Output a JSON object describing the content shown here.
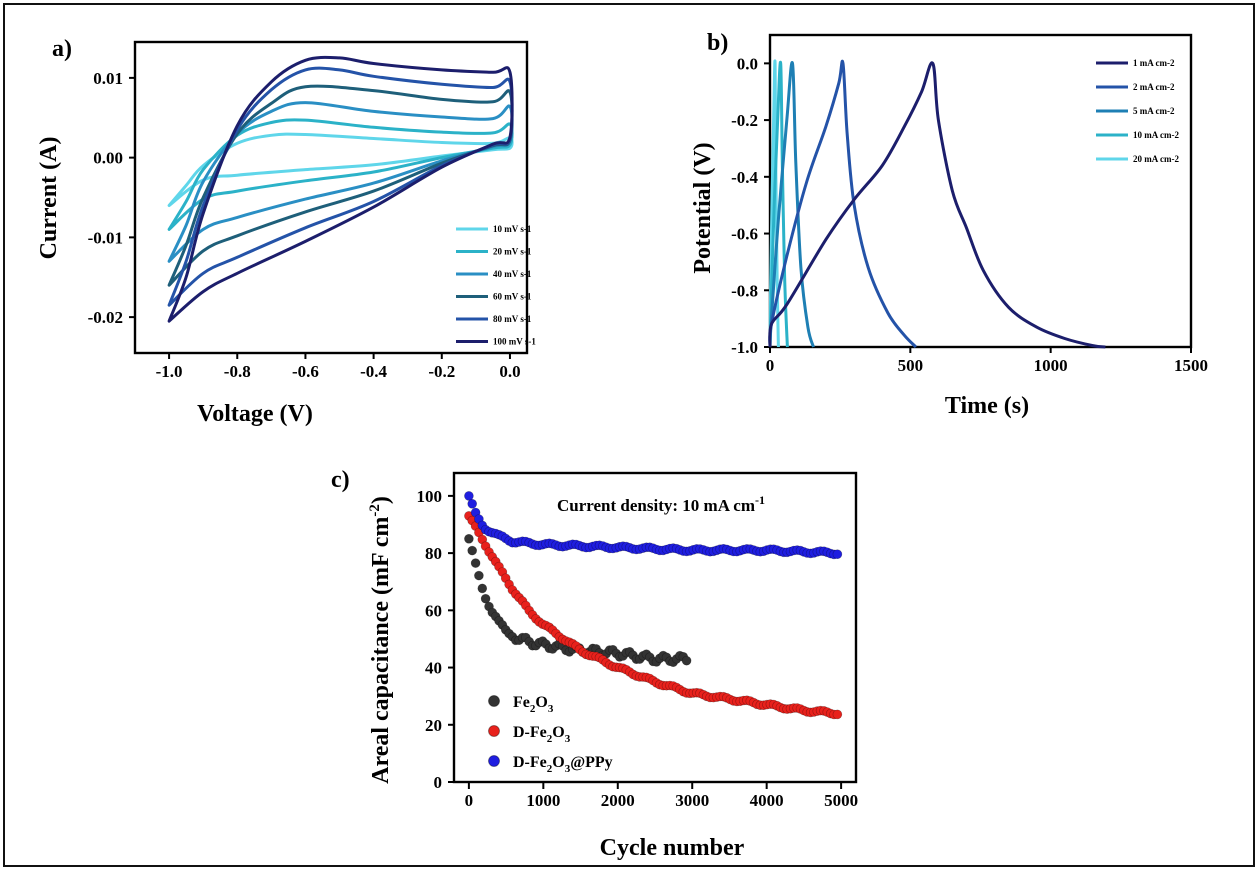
{
  "chart_data": [
    {
      "panel": "a)",
      "type": "line",
      "xlabel": "Voltage (V)",
      "ylabel": "Current (A)",
      "xlim": [
        -1.1,
        0.05
      ],
      "ylim": [
        -0.0245,
        0.0145
      ],
      "x_ticks": [
        -1.0,
        -0.8,
        -0.6,
        -0.4,
        -0.2,
        0.0
      ],
      "x_tick_labels": [
        "-1.0",
        "-0.8",
        "-0.6",
        "-0.4",
        "-0.2",
        "0.0"
      ],
      "y_ticks": [
        0.01,
        0.0,
        -0.01,
        -0.02
      ],
      "y_tick_labels": [
        "0.01",
        "0.00",
        "-0.01",
        "-0.02"
      ],
      "legend_position": "bottom-right",
      "series": [
        {
          "name": "10 mV s-1",
          "color": "#5fd6ea",
          "top": [
            [
              -1.0,
              -0.006
            ],
            [
              -0.95,
              -0.0035
            ],
            [
              -0.9,
              -0.001
            ],
            [
              -0.8,
              0.0018
            ],
            [
              -0.7,
              0.0028
            ],
            [
              -0.6,
              0.0029
            ],
            [
              -0.4,
              0.0024
            ],
            [
              -0.2,
              0.0019
            ],
            [
              -0.05,
              0.0018
            ],
            [
              0.0,
              0.0025
            ]
          ],
          "bottom": [
            [
              0.0,
              0.0012
            ],
            [
              -0.05,
              0.001
            ],
            [
              -0.2,
              0.0002
            ],
            [
              -0.4,
              -0.0009
            ],
            [
              -0.6,
              -0.0015
            ],
            [
              -0.8,
              -0.0022
            ],
            [
              -0.9,
              -0.0028
            ],
            [
              -1.0,
              -0.006
            ]
          ]
        },
        {
          "name": "20 mV s-1",
          "color": "#2bb2c8",
          "top": [
            [
              -1.0,
              -0.009
            ],
            [
              -0.95,
              -0.0055
            ],
            [
              -0.9,
              -0.0015
            ],
            [
              -0.8,
              0.0028
            ],
            [
              -0.7,
              0.0044
            ],
            [
              -0.6,
              0.0047
            ],
            [
              -0.4,
              0.0038
            ],
            [
              -0.2,
              0.0032
            ],
            [
              -0.05,
              0.0031
            ],
            [
              0.0,
              0.0042
            ]
          ],
          "bottom": [
            [
              0.0,
              0.0016
            ],
            [
              -0.05,
              0.0012
            ],
            [
              -0.2,
              0.0
            ],
            [
              -0.4,
              -0.0018
            ],
            [
              -0.6,
              -0.0029
            ],
            [
              -0.8,
              -0.0042
            ],
            [
              -0.9,
              -0.0052
            ],
            [
              -1.0,
              -0.009
            ]
          ]
        },
        {
          "name": "40 mV s-1",
          "color": "#2a8fc4",
          "top": [
            [
              -1.0,
              -0.013
            ],
            [
              -0.95,
              -0.0085
            ],
            [
              -0.9,
              -0.003
            ],
            [
              -0.8,
              0.003
            ],
            [
              -0.7,
              0.0058
            ],
            [
              -0.6,
              0.0069
            ],
            [
              -0.4,
              0.0058
            ],
            [
              -0.2,
              0.0051
            ],
            [
              -0.05,
              0.0049
            ],
            [
              0.0,
              0.0064
            ]
          ],
          "bottom": [
            [
              0.0,
              0.002
            ],
            [
              -0.05,
              0.0014
            ],
            [
              -0.2,
              -0.0004
            ],
            [
              -0.4,
              -0.0032
            ],
            [
              -0.6,
              -0.0052
            ],
            [
              -0.8,
              -0.0075
            ],
            [
              -0.9,
              -0.009
            ],
            [
              -1.0,
              -0.013
            ]
          ]
        },
        {
          "name": "60 mV s-1",
          "color": "#1e5f7a",
          "top": [
            [
              -1.0,
              -0.016
            ],
            [
              -0.95,
              -0.011
            ],
            [
              -0.9,
              -0.005
            ],
            [
              -0.8,
              0.003
            ],
            [
              -0.7,
              0.0068
            ],
            [
              -0.6,
              0.0089
            ],
            [
              -0.4,
              0.0084
            ],
            [
              -0.2,
              0.0073
            ],
            [
              -0.05,
              0.007
            ],
            [
              0.0,
              0.0082
            ]
          ],
          "bottom": [
            [
              0.0,
              0.0022
            ],
            [
              -0.05,
              0.0015
            ],
            [
              -0.2,
              -0.0007
            ],
            [
              -0.4,
              -0.0042
            ],
            [
              -0.6,
              -0.0068
            ],
            [
              -0.8,
              -0.0098
            ],
            [
              -0.9,
              -0.0117
            ],
            [
              -1.0,
              -0.016
            ]
          ]
        },
        {
          "name": "80 mV s-1",
          "color": "#2453a8",
          "top": [
            [
              -1.0,
              -0.0185
            ],
            [
              -0.95,
              -0.013
            ],
            [
              -0.9,
              -0.006
            ],
            [
              -0.8,
              0.0035
            ],
            [
              -0.7,
              0.0085
            ],
            [
              -0.6,
              0.011
            ],
            [
              -0.5,
              0.011
            ],
            [
              -0.4,
              0.0102
            ],
            [
              -0.2,
              0.0092
            ],
            [
              -0.05,
              0.0088
            ],
            [
              0.0,
              0.0095
            ]
          ],
          "bottom": [
            [
              0.0,
              0.0024
            ],
            [
              -0.05,
              0.0016
            ],
            [
              -0.2,
              -0.001
            ],
            [
              -0.4,
              -0.0055
            ],
            [
              -0.6,
              -0.0088
            ],
            [
              -0.8,
              -0.0125
            ],
            [
              -0.9,
              -0.0145
            ],
            [
              -1.0,
              -0.0185
            ]
          ]
        },
        {
          "name": "100 mV s-1",
          "color": "#1c1e6c",
          "top": [
            [
              -1.0,
              -0.0205
            ],
            [
              -0.95,
              -0.015
            ],
            [
              -0.9,
              -0.007
            ],
            [
              -0.8,
              0.004
            ],
            [
              -0.7,
              0.0095
            ],
            [
              -0.6,
              0.0122
            ],
            [
              -0.5,
              0.0125
            ],
            [
              -0.4,
              0.0118
            ],
            [
              -0.2,
              0.011
            ],
            [
              -0.05,
              0.0107
            ],
            [
              0.0,
              0.0107
            ]
          ],
          "bottom": [
            [
              0.0,
              0.0026
            ],
            [
              -0.05,
              0.0017
            ],
            [
              -0.2,
              -0.0012
            ],
            [
              -0.4,
              -0.0062
            ],
            [
              -0.6,
              -0.0105
            ],
            [
              -0.8,
              -0.0145
            ],
            [
              -0.9,
              -0.0168
            ],
            [
              -1.0,
              -0.0205
            ]
          ]
        }
      ]
    },
    {
      "panel": "b)",
      "type": "line",
      "xlabel": "Time (s)",
      "ylabel": "Potential (V)",
      "xlim": [
        0,
        1500
      ],
      "ylim": [
        -1.0,
        0.1
      ],
      "x_ticks": [
        0,
        500,
        1000,
        1500
      ],
      "x_tick_labels": [
        "0",
        "500",
        "1000",
        "1500"
      ],
      "y_ticks": [
        0.0,
        -0.2,
        -0.4,
        -0.6,
        -0.8,
        -1.0
      ],
      "y_tick_labels": [
        "0.0",
        "-0.2",
        "-0.4",
        "-0.6",
        "-0.8",
        "-1.0"
      ],
      "legend_position": "top-right",
      "series": [
        {
          "name": "1 mA cm-2",
          "color": "#1c1e6c",
          "points": [
            [
              0,
              -1.0
            ],
            [
              5,
              -0.92
            ],
            [
              60,
              -0.85
            ],
            [
              200,
              -0.62
            ],
            [
              300,
              -0.48
            ],
            [
              400,
              -0.36
            ],
            [
              480,
              -0.22
            ],
            [
              540,
              -0.1
            ],
            [
              580,
              0.0
            ],
            [
              600,
              -0.2
            ],
            [
              650,
              -0.45
            ],
            [
              700,
              -0.58
            ],
            [
              760,
              -0.73
            ],
            [
              850,
              -0.86
            ],
            [
              950,
              -0.93
            ],
            [
              1050,
              -0.97
            ],
            [
              1150,
              -0.995
            ],
            [
              1195,
              -1.0
            ]
          ]
        },
        {
          "name": "2 mA cm-2",
          "color": "#2453a8",
          "points": [
            [
              0,
              -1.0
            ],
            [
              5,
              -0.92
            ],
            [
              60,
              -0.68
            ],
            [
              130,
              -0.42
            ],
            [
              200,
              -0.22
            ],
            [
              245,
              -0.07
            ],
            [
              260,
              0.0
            ],
            [
              275,
              -0.25
            ],
            [
              300,
              -0.5
            ],
            [
              350,
              -0.72
            ],
            [
              420,
              -0.88
            ],
            [
              480,
              -0.96
            ],
            [
              520,
              -1.0
            ]
          ]
        },
        {
          "name": "5 mA cm-2",
          "color": "#1e7fb4",
          "points": [
            [
              0,
              -1.0
            ],
            [
              5,
              -0.9
            ],
            [
              30,
              -0.55
            ],
            [
              60,
              -0.2
            ],
            [
              80,
              0.0
            ],
            [
              92,
              -0.35
            ],
            [
              110,
              -0.72
            ],
            [
              135,
              -0.93
            ],
            [
              155,
              -1.0
            ]
          ]
        },
        {
          "name": "10 mA cm-2",
          "color": "#2bb2c8",
          "points": [
            [
              0,
              -1.0
            ],
            [
              4,
              -0.85
            ],
            [
              15,
              -0.5
            ],
            [
              28,
              -0.18
            ],
            [
              38,
              0.0
            ],
            [
              44,
              -0.35
            ],
            [
              52,
              -0.75
            ],
            [
              62,
              -1.0
            ]
          ]
        },
        {
          "name": "20 mA cm-2",
          "color": "#5fd6ea",
          "points": [
            [
              0,
              -1.0
            ],
            [
              2,
              -0.8
            ],
            [
              8,
              -0.45
            ],
            [
              14,
              -0.15
            ],
            [
              18,
              0.0
            ],
            [
              21,
              -0.4
            ],
            [
              26,
              -0.8
            ],
            [
              30,
              -1.0
            ]
          ]
        }
      ]
    },
    {
      "panel": "c)",
      "type": "scatter",
      "xlabel": "Cycle number",
      "ylabel": "Areal capacitance (mF cm",
      "ylabel_sup": "-2",
      "ylabel_end": ")",
      "xlim": [
        -200,
        5200
      ],
      "ylim": [
        0,
        108
      ],
      "x_ticks": [
        0,
        1000,
        2000,
        3000,
        4000,
        5000
      ],
      "x_tick_labels": [
        "0",
        "1000",
        "2000",
        "3000",
        "4000",
        "5000"
      ],
      "y_ticks": [
        0,
        20,
        40,
        60,
        80,
        100
      ],
      "y_tick_labels": [
        "0",
        "20",
        "40",
        "60",
        "80",
        "100"
      ],
      "annotation": {
        "text": "Current density: 10 mA cm",
        "sup": "-1"
      },
      "legend_position": "bottom-left",
      "series": [
        {
          "name_parts": [
            "Fe",
            "2",
            "O",
            "3",
            ""
          ],
          "color": "#333333",
          "x_range": [
            0,
            2950
          ],
          "values_at": [
            [
              0,
              85
            ],
            [
              100,
              75
            ],
            [
              200,
              66
            ],
            [
              300,
              60
            ],
            [
              400,
              56
            ],
            [
              500,
              53
            ],
            [
              600,
              51
            ],
            [
              800,
              49
            ],
            [
              1000,
              48
            ],
            [
              1500,
              46
            ],
            [
              2000,
              45
            ],
            [
              2500,
              43
            ],
            [
              2950,
              43
            ]
          ]
        },
        {
          "name_parts": [
            "D-Fe",
            "2",
            "O",
            "3",
            ""
          ],
          "color": "#e8211c",
          "x_range": [
            0,
            4950
          ],
          "values_at": [
            [
              0,
              93
            ],
            [
              200,
              84
            ],
            [
              400,
              75
            ],
            [
              600,
              67
            ],
            [
              800,
              60
            ],
            [
              1000,
              55
            ],
            [
              1500,
              46
            ],
            [
              2000,
              40
            ],
            [
              2500,
              35
            ],
            [
              3000,
              31
            ],
            [
              3500,
              29
            ],
            [
              4000,
              27
            ],
            [
              4500,
              25
            ],
            [
              4950,
              24
            ]
          ]
        },
        {
          "name_parts": [
            "D-Fe",
            "2",
            "O",
            "3",
            "@PPy"
          ],
          "color": "#1f1ee0",
          "x_range": [
            0,
            4950
          ],
          "values_at": [
            [
              0,
              100
            ],
            [
              100,
              93
            ],
            [
              200,
              89
            ],
            [
              400,
              86
            ],
            [
              600,
              84
            ],
            [
              1000,
              83
            ],
            [
              2000,
              82
            ],
            [
              3000,
              81
            ],
            [
              4000,
              81
            ],
            [
              4950,
              80
            ]
          ]
        }
      ]
    }
  ]
}
